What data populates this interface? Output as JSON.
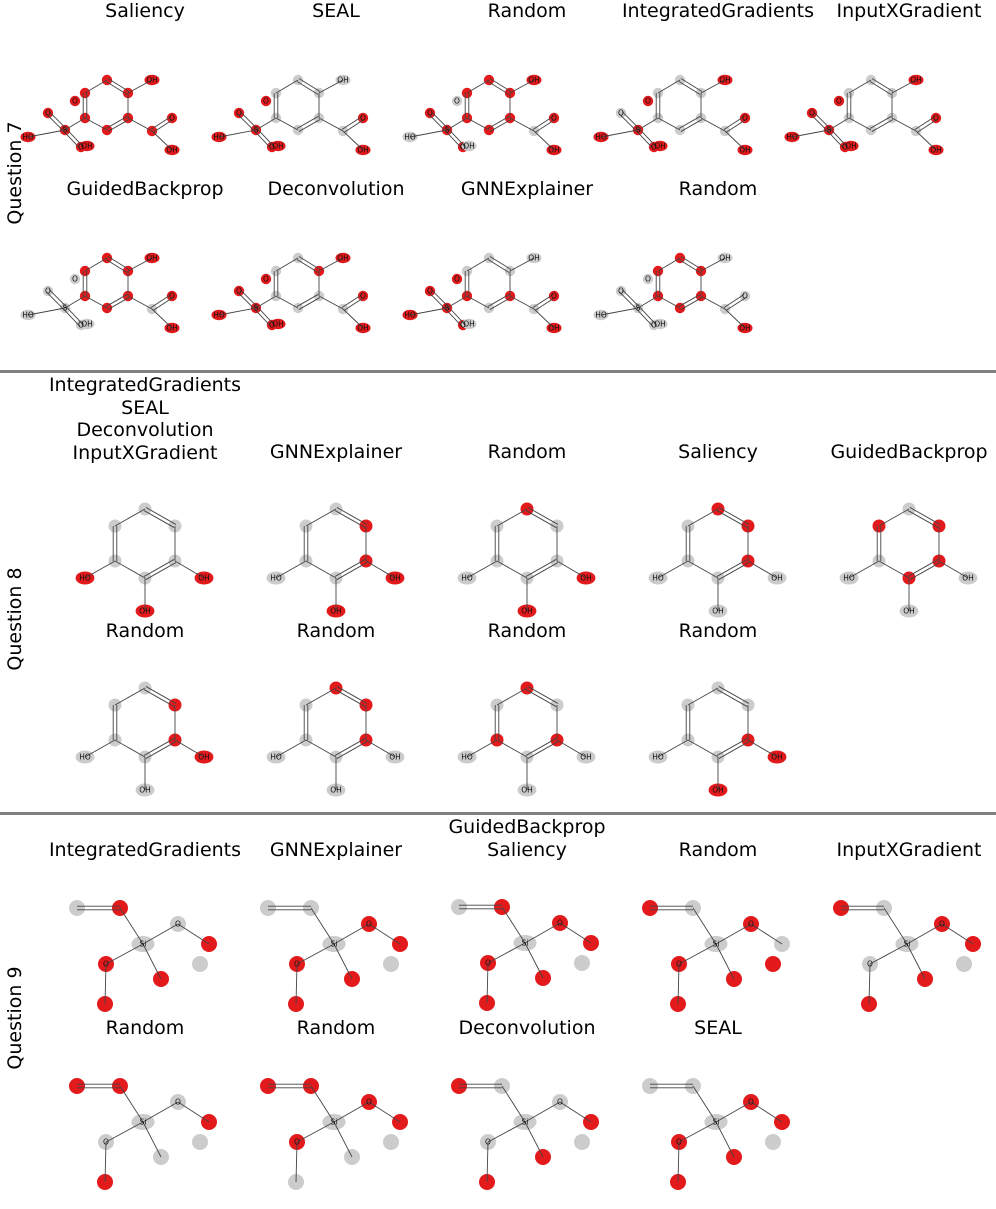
{
  "colors": {
    "highlight": "#e31a1c",
    "neutral": "#cccccc",
    "divider": "#808080",
    "bond": "#444444"
  },
  "sections": [
    {
      "label": "Question 7",
      "molecule": "sulfosalicylic",
      "panels": [
        {
          "title": [
            "Saliency"
          ],
          "hl": [
            0,
            1,
            2,
            3,
            4,
            5,
            6,
            7,
            8,
            9,
            10,
            11,
            12,
            13,
            14,
            15
          ]
        },
        {
          "title": [
            "SEAL"
          ],
          "hl": [
            8,
            9,
            10,
            11,
            12,
            13,
            14,
            15
          ]
        },
        {
          "title": [
            "Random"
          ],
          "hl": [
            0,
            1,
            2,
            3,
            4,
            5,
            6,
            8,
            9,
            10,
            11,
            12
          ]
        },
        {
          "title": [
            "IntegratedGradients"
          ],
          "hl": [
            6,
            8,
            9,
            10,
            11,
            13,
            14,
            15
          ]
        },
        {
          "title": [
            "InputXGradient"
          ],
          "hl": [
            6,
            8,
            9,
            10,
            11,
            12,
            13,
            14,
            15
          ]
        },
        {
          "title": [
            "GuidedBackprop"
          ],
          "hl": [
            0,
            1,
            2,
            3,
            4,
            5,
            6,
            8,
            9
          ]
        },
        {
          "title": [
            "Deconvolution"
          ],
          "hl": [
            1,
            6,
            8,
            9,
            10,
            11,
            12,
            13,
            14,
            15
          ]
        },
        {
          "title": [
            "GNNExplainer"
          ],
          "hl": [
            2,
            4,
            8,
            9,
            10,
            11,
            12,
            13,
            14
          ]
        },
        {
          "title": [
            "Random"
          ],
          "hl": [
            0,
            1,
            2,
            3,
            4,
            5,
            9
          ]
        }
      ]
    },
    {
      "label": "Question 8",
      "molecule": "pyrogallol",
      "panels": [
        {
          "title": [
            "IntegratedGradients",
            "SEAL",
            "Deconvolution",
            "InputXGradient"
          ],
          "hl": [
            6,
            7,
            8
          ]
        },
        {
          "title": [
            "GNNExplainer"
          ],
          "hl": [
            1,
            2,
            6,
            7
          ]
        },
        {
          "title": [
            "Random"
          ],
          "hl": [
            0,
            6,
            7
          ]
        },
        {
          "title": [
            "Saliency"
          ],
          "hl": [
            0,
            1,
            2
          ]
        },
        {
          "title": [
            "GuidedBackprop"
          ],
          "hl": [
            1,
            2,
            3,
            5
          ]
        },
        {
          "title": [
            "Random"
          ],
          "hl": [
            1,
            2,
            7
          ]
        },
        {
          "title": [
            "Random"
          ],
          "hl": [
            0,
            1,
            2
          ]
        },
        {
          "title": [
            "Random"
          ],
          "hl": [
            0,
            2,
            4
          ]
        },
        {
          "title": [
            "Random"
          ],
          "hl": [
            2,
            6,
            7
          ]
        }
      ]
    },
    {
      "label": "Question 9",
      "molecule": "silane",
      "panels": [
        {
          "title": [
            "IntegratedGradients"
          ],
          "hl": [
            1,
            4,
            5,
            6,
            7
          ]
        },
        {
          "title": [
            "GNNExplainer"
          ],
          "hl": [
            3,
            4,
            5,
            6,
            7
          ]
        },
        {
          "title": [
            "GuidedBackprop",
            "Saliency"
          ],
          "hl": [
            1,
            3,
            4,
            5,
            6,
            7
          ]
        },
        {
          "title": [
            "Random"
          ],
          "hl": [
            0,
            3,
            5,
            6,
            7,
            8
          ]
        },
        {
          "title": [
            "InputXGradient"
          ],
          "hl": [
            0,
            3,
            4,
            6,
            7
          ]
        },
        {
          "title": [
            "Random"
          ],
          "hl": [
            0,
            1,
            4,
            6
          ]
        },
        {
          "title": [
            "Random"
          ],
          "hl": [
            0,
            1,
            3,
            4,
            5
          ]
        },
        {
          "title": [
            "Deconvolution"
          ],
          "hl": [
            0,
            4,
            6,
            7
          ]
        },
        {
          "title": [
            "SEAL"
          ],
          "hl": [
            3,
            4,
            5,
            6,
            7
          ]
        }
      ]
    }
  ],
  "molecules": {
    "sulfosalicylic": {
      "atoms": [
        {
          "label": ""
        },
        {
          "label": ""
        },
        {
          "label": ""
        },
        {
          "label": ""
        },
        {
          "label": ""
        },
        {
          "label": ""
        },
        {
          "label": "OH"
        },
        {
          "label": ""
        },
        {
          "label": "O"
        },
        {
          "label": "OH"
        },
        {
          "label": "S"
        },
        {
          "label": "O"
        },
        {
          "label": "O"
        },
        {
          "label": "HO"
        },
        {
          "label": "O"
        },
        {
          "label": "OH"
        }
      ]
    },
    "pyrogallol": {
      "atoms": [
        {
          "label": ""
        },
        {
          "label": ""
        },
        {
          "label": ""
        },
        {
          "label": ""
        },
        {
          "label": ""
        },
        {
          "label": ""
        },
        {
          "label": "OH"
        },
        {
          "label": "OH"
        },
        {
          "label": "HO"
        }
      ]
    },
    "silane": {
      "atoms": [
        {
          "label": ""
        },
        {
          "label": ""
        },
        {
          "label": "Si"
        },
        {
          "label": "O"
        },
        {
          "label": ""
        },
        {
          "label": "O"
        },
        {
          "label": ""
        },
        {
          "label": ""
        },
        {
          "label": ""
        }
      ]
    }
  }
}
